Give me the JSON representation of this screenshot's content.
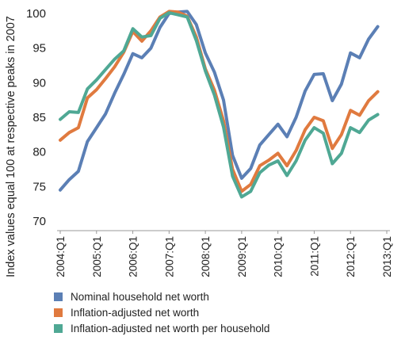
{
  "chart_data": {
    "type": "line",
    "title": "",
    "xlabel": "",
    "ylabel": "Index values equal 100 at respective peaks in 2007",
    "ylim": [
      70,
      100
    ],
    "yticks": [
      70,
      75,
      80,
      85,
      90,
      95,
      100
    ],
    "grid": false,
    "legend_position": "bottom",
    "x": [
      "2004:Q1",
      "2004:Q2",
      "2004:Q3",
      "2004:Q4",
      "2005:Q1",
      "2005:Q2",
      "2005:Q3",
      "2005:Q4",
      "2006:Q1",
      "2006:Q2",
      "2006:Q3",
      "2006:Q4",
      "2007:Q1",
      "2007:Q2",
      "2007:Q3",
      "2007:Q4",
      "2008:Q1",
      "2008:Q2",
      "2008:Q3",
      "2008:Q4",
      "2009:Q1",
      "2009:Q2",
      "2009:Q3",
      "2009:Q4",
      "2010:Q1",
      "2010:Q2",
      "2010:Q3",
      "2010:Q4",
      "2011:Q1",
      "2011:Q2",
      "2011:Q3",
      "2011:Q4",
      "2012:Q1",
      "2012:Q2",
      "2012:Q3",
      "2012:Q4",
      "2013:Q1"
    ],
    "xticklabels": [
      "2004:Q1",
      "2005:Q1",
      "2006:Q1",
      "2007:Q1",
      "2008:Q1",
      "2009:Q1",
      "2010:Q1",
      "2011:Q1",
      "2012:Q1",
      "2013:Q1"
    ],
    "series": [
      {
        "name": "Nominal household net worth",
        "color": "#5b7fb5",
        "values": [
          74.5,
          76.0,
          77.2,
          81.5,
          83.5,
          85.5,
          88.5,
          91.2,
          94.2,
          93.6,
          95.0,
          98.0,
          100.0,
          100.2,
          100.3,
          98.4,
          94.3,
          91.5,
          87.5,
          79.5,
          76.2,
          77.6,
          81.0,
          82.5,
          84.0,
          82.2,
          85.0,
          88.8,
          91.2,
          91.3,
          87.4,
          89.8,
          94.3,
          93.6,
          96.3,
          98.1,
          null
        ]
      },
      {
        "name": "Inflation-adjusted net worth",
        "color": "#e07a3f",
        "values": [
          81.7,
          82.8,
          83.5,
          87.8,
          89.0,
          90.6,
          92.3,
          94.4,
          97.4,
          96.0,
          97.5,
          99.5,
          100.3,
          100.2,
          99.6,
          96.6,
          92.0,
          88.9,
          84.5,
          77.5,
          74.3,
          75.3,
          78.0,
          78.8,
          79.8,
          78.0,
          80.2,
          83.2,
          85.0,
          84.5,
          80.5,
          82.5,
          86.0,
          85.3,
          87.4,
          88.7,
          null
        ]
      },
      {
        "name": "Inflation-adjusted net worth per household",
        "color": "#4fa894",
        "values": [
          84.7,
          85.8,
          85.7,
          89.1,
          90.4,
          91.9,
          93.4,
          94.6,
          97.8,
          96.6,
          96.8,
          99.3,
          100.1,
          99.8,
          99.5,
          96.1,
          91.7,
          88.2,
          83.6,
          76.5,
          73.5,
          74.3,
          77.0,
          78.1,
          78.7,
          76.6,
          78.7,
          81.7,
          83.5,
          82.7,
          78.3,
          79.8,
          83.5,
          82.8,
          84.6,
          85.4,
          null
        ]
      }
    ]
  }
}
